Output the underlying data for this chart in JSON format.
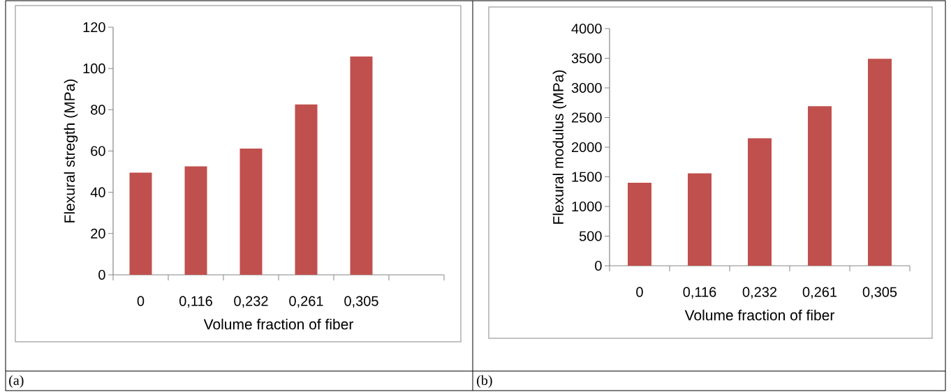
{
  "chart_data": [
    {
      "type": "bar",
      "categories": [
        "0",
        "0,116",
        "0,232",
        "0,261",
        "0,305",
        null
      ],
      "values": [
        49.5,
        52.6,
        61.2,
        82.6,
        105.8,
        null
      ],
      "color": "#c0504d",
      "ylim": [
        0,
        120
      ],
      "yticks": [
        0,
        20,
        40,
        60,
        80,
        100,
        120
      ],
      "xlabel": "Volume fraction of fiber",
      "ylabel": "Flexural stregth (MPa)",
      "annotations": [
        "(a)"
      ]
    },
    {
      "type": "bar",
      "categories": [
        "0",
        "0,116",
        "0,232",
        "0,261",
        "0,305"
      ],
      "values": [
        1400,
        1560,
        2150,
        2690,
        3490
      ],
      "color": "#c0504d",
      "ylim": [
        0,
        4000
      ],
      "yticks": [
        0,
        500,
        1000,
        1500,
        2000,
        2500,
        3000,
        3500,
        4000
      ],
      "xlabel": "Volume fraction of fiber",
      "ylabel": "Flexural modulus (MPa)",
      "annotations": [
        "(b)"
      ]
    }
  ]
}
